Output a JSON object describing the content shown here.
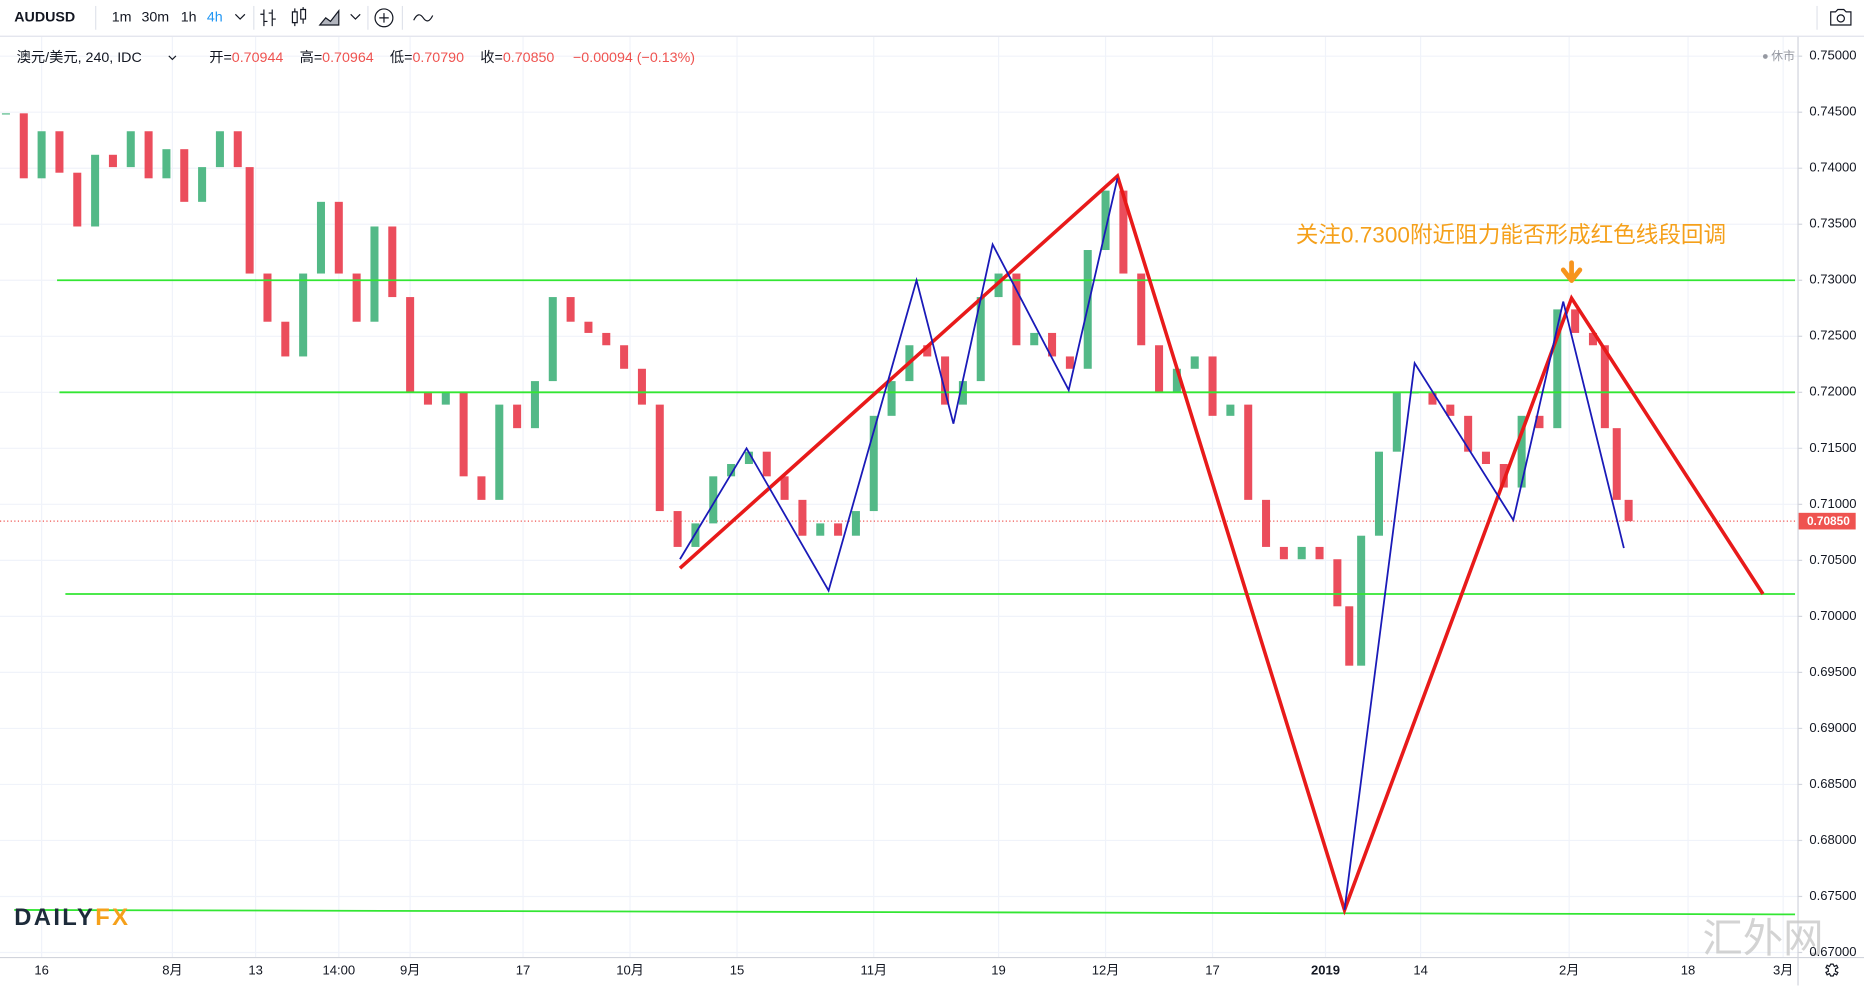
{
  "toolbar": {
    "symbol": "AUDUSD",
    "intervals": [
      "1m",
      "30m",
      "1h",
      "4h"
    ]
  },
  "legend": {
    "name": "澳元/美元, 240, IDC",
    "open_label": "开=",
    "open": "0.70944",
    "high_label": "高=",
    "high": "0.70964",
    "low_label": "低=",
    "low": "0.70790",
    "close_label": "收=",
    "close": "0.70850",
    "change": "−0.00094 (−0.13%)"
  },
  "chart_data": {
    "type": "candlestick",
    "status": "休市",
    "annotation": "关注0.7300附近阻力能否形成红色线段回调",
    "logo": [
      "DAILY",
      "FX"
    ],
    "watermark": "汇外网",
    "up_color": "#53b987",
    "down_color": "#eb4d5c",
    "grid": true,
    "xlim": [
      0,
      302
    ],
    "ylim": [
      0.6696,
      0.7513
    ],
    "xticks": [
      {
        "value": 7,
        "label": "16"
      },
      {
        "value": 29,
        "label": "8月"
      },
      {
        "value": 43,
        "label": "13"
      },
      {
        "value": 57,
        "label": "14:00"
      },
      {
        "value": 69,
        "label": "9月"
      },
      {
        "value": 88,
        "label": "17"
      },
      {
        "value": 106,
        "label": "10月"
      },
      {
        "value": 124,
        "label": "15"
      },
      {
        "value": 147,
        "label": "11月"
      },
      {
        "value": 168,
        "label": "19"
      },
      {
        "value": 186,
        "label": "12月"
      },
      {
        "value": 204,
        "label": "17"
      },
      {
        "value": 223,
        "label": "2019"
      },
      {
        "value": 239,
        "label": "14"
      },
      {
        "value": 264,
        "label": "2月"
      },
      {
        "value": 284,
        "label": "18"
      },
      {
        "value": 300,
        "label": "3月"
      }
    ],
    "yticks": [
      {
        "value": 0.67,
        "label": "0.67000"
      },
      {
        "value": 0.675,
        "label": "0.67500"
      },
      {
        "value": 0.68,
        "label": "0.68000"
      },
      {
        "value": 0.685,
        "label": "0.68500"
      },
      {
        "value": 0.69,
        "label": "0.69000"
      },
      {
        "value": 0.695,
        "label": "0.69500"
      },
      {
        "value": 0.7,
        "label": "0.70000"
      },
      {
        "value": 0.705,
        "label": "0.70500"
      },
      {
        "value": 0.71,
        "label": "0.71000"
      },
      {
        "value": 0.715,
        "label": "0.71500"
      },
      {
        "value": 0.72,
        "label": "0.72000"
      },
      {
        "value": 0.725,
        "label": "0.72500"
      },
      {
        "value": 0.73,
        "label": "0.73000"
      },
      {
        "value": 0.735,
        "label": "0.73500"
      },
      {
        "value": 0.74,
        "label": "0.74000"
      },
      {
        "value": 0.745,
        "label": "0.74500"
      },
      {
        "value": 0.75,
        "label": "0.75000"
      }
    ],
    "last_price": {
      "value": 0.7085,
      "label": "0.70850",
      "color": "#ef5350"
    },
    "x": [
      1,
      4,
      7,
      10,
      13,
      16,
      19,
      22,
      25,
      28,
      31,
      34,
      37,
      40,
      42,
      45,
      48,
      51,
      54,
      57,
      60,
      63,
      66,
      69,
      72,
      75,
      78,
      81,
      84,
      87,
      90,
      93,
      96,
      99,
      102,
      105,
      108,
      111,
      114,
      117,
      120,
      123,
      126,
      129,
      132,
      135,
      138,
      141,
      144,
      147,
      150,
      153,
      156,
      159,
      162,
      165,
      168,
      171,
      174,
      177,
      180,
      183,
      186,
      189,
      192,
      195,
      198,
      201,
      204,
      207,
      210,
      213,
      216,
      219,
      222,
      225,
      227,
      229,
      232,
      235,
      238,
      241,
      244,
      247,
      250,
      253,
      256,
      259,
      262,
      265,
      268,
      270,
      272,
      274
    ],
    "values": [
      0.7449,
      0.7391,
      0.7433,
      0.7396,
      0.7348,
      0.7412,
      0.7401,
      0.7433,
      0.7391,
      0.7417,
      0.737,
      0.7401,
      0.7433,
      0.7401,
      0.7306,
      0.7263,
      0.7232,
      0.7306,
      0.737,
      0.7306,
      0.7263,
      0.7348,
      0.7285,
      0.72,
      0.7189,
      0.72,
      0.7125,
      0.7104,
      0.7189,
      0.7168,
      0.721,
      0.7285,
      0.7263,
      0.7253,
      0.7242,
      0.7221,
      0.7189,
      0.7094,
      0.7062,
      0.7083,
      0.7125,
      0.7136,
      0.7147,
      0.7125,
      0.7104,
      0.7072,
      0.7083,
      0.7072,
      0.7094,
      0.7179,
      0.721,
      0.7242,
      0.7232,
      0.7189,
      0.721,
      0.7285,
      0.7306,
      0.7242,
      0.7253,
      0.7232,
      0.7221,
      0.7327,
      0.738,
      0.7306,
      0.7242,
      0.72,
      0.7221,
      0.7232,
      0.7179,
      0.7189,
      0.7104,
      0.7062,
      0.7051,
      0.7062,
      0.7051,
      0.7009,
      0.6956,
      0.7072,
      0.7147,
      0.72,
      0.72,
      0.7189,
      0.7179,
      0.7147,
      0.7136,
      0.7115,
      0.7179,
      0.7168,
      0.7274,
      0.7253,
      0.7242,
      0.7168,
      0.7104,
      0.7085
    ],
    "overlays": [
      {
        "color": "#33e633",
        "width": 1.5,
        "x": [
          9.6,
          302
        ],
        "values": [
          0.73,
          0.73
        ]
      },
      {
        "color": "#33e633",
        "width": 1.5,
        "x": [
          10,
          302
        ],
        "values": [
          0.72,
          0.72
        ]
      },
      {
        "color": "#33e633",
        "width": 1.5,
        "x": [
          11,
          302
        ],
        "values": [
          0.702,
          0.702
        ]
      },
      {
        "color": "#33e633",
        "width": 1.5,
        "x": [
          2.4,
          302
        ],
        "values": [
          0.6738,
          0.6734
        ]
      },
      {
        "color": "#e81a1a",
        "width": 3,
        "x": [
          114.4,
          188,
          226.2,
          264.4,
          296.6
        ],
        "values": [
          0.7043,
          0.7393,
          0.6738,
          0.7284,
          0.702
        ]
      },
      {
        "color": "#1a1ab8",
        "width": 1.5,
        "x": [
          114.4,
          125.6,
          139.4,
          154.2,
          160.4,
          167,
          179.8,
          188,
          null,
          226.2,
          238,
          254.6,
          263,
          273.2
        ],
        "values": [
          0.7051,
          0.715,
          0.7023,
          0.73,
          0.7172,
          0.7332,
          0.7202,
          0.7391,
          null,
          0.6738,
          0.7226,
          0.7086,
          0.7281,
          0.7061
        ]
      }
    ]
  }
}
